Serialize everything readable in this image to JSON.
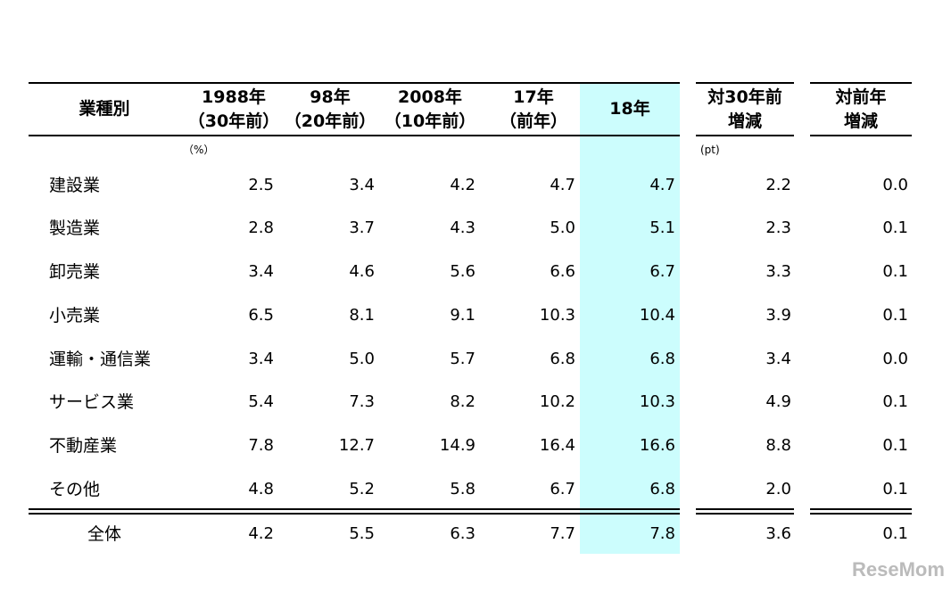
{
  "table": {
    "header": [
      [
        "業種別"
      ],
      [
        "1988年",
        "（30年前）"
      ],
      [
        "98年",
        "（20年前）"
      ],
      [
        "2008年",
        "（10年前）"
      ],
      [
        "17年",
        "（前年）"
      ],
      [
        "18年"
      ],
      [
        "対30年前",
        "増減"
      ],
      [
        "対前年",
        "増減"
      ]
    ],
    "units": [
      "（%）",
      "(pt)"
    ],
    "rows": [
      [
        "建設業",
        "2.5",
        "3.4",
        "4.2",
        "4.7",
        "4.7",
        "2.2",
        "0.0"
      ],
      [
        "製造業",
        "2.8",
        "3.7",
        "4.3",
        "5.0",
        "5.1",
        "2.3",
        "0.1"
      ],
      [
        "卸売業",
        "3.4",
        "4.6",
        "5.6",
        "6.6",
        "6.7",
        "3.3",
        "0.1"
      ],
      [
        "小売業",
        "6.5",
        "8.1",
        "9.1",
        "10.3",
        "10.4",
        "3.9",
        "0.1"
      ],
      [
        "運輸・通信業",
        "3.4",
        "5.0",
        "5.7",
        "6.8",
        "6.8",
        "3.4",
        "0.0"
      ],
      [
        "サービス業",
        "5.4",
        "7.3",
        "8.2",
        "10.2",
        "10.3",
        "4.9",
        "0.1"
      ],
      [
        "不動産業",
        "7.8",
        "12.7",
        "14.9",
        "16.4",
        "16.6",
        "8.8",
        "0.1"
      ],
      [
        "その他",
        "4.8",
        "5.2",
        "5.8",
        "6.7",
        "6.8",
        "2.0",
        "0.1"
      ]
    ],
    "total": [
      "全体",
      "4.2",
      "5.5",
      "6.3",
      "7.7",
      "7.8",
      "3.6",
      "0.1"
    ]
  },
  "watermark": "ReseMom"
}
